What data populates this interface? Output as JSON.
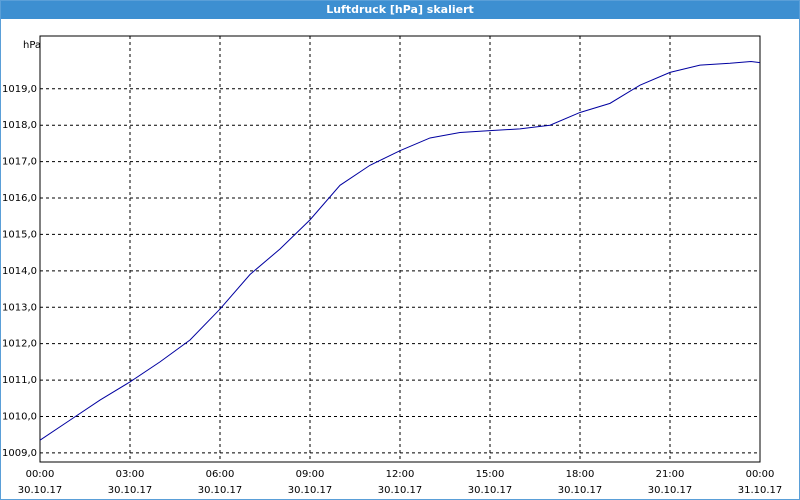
{
  "window_title": "Luftdruck [hPa] skaliert",
  "chart_data": {
    "type": "line",
    "y_label": "hPa",
    "x": [
      0,
      1,
      2,
      3,
      4,
      5,
      6,
      7,
      8,
      9,
      10,
      11,
      12,
      13,
      14,
      15,
      16,
      17,
      18,
      19,
      20,
      21,
      22,
      23,
      23.7,
      24
    ],
    "series": [
      {
        "name": "Luftdruck",
        "color": "#0000a0",
        "values": [
          1009.35,
          1009.9,
          1010.45,
          1010.95,
          1011.5,
          1012.1,
          1012.95,
          1013.9,
          1014.6,
          1015.4,
          1016.35,
          1016.9,
          1017.3,
          1017.65,
          1017.8,
          1017.85,
          1017.9,
          1018.0,
          1018.35,
          1018.6,
          1019.1,
          1019.45,
          1019.65,
          1019.7,
          1019.75,
          1019.72
        ]
      }
    ],
    "xlim": [
      0,
      24
    ],
    "ylim": [
      1008.75,
      1020.45
    ],
    "xticks": [
      {
        "value": 0,
        "label": "00:00",
        "date": "30.10.17"
      },
      {
        "value": 3,
        "label": "03:00",
        "date": "30.10.17"
      },
      {
        "value": 6,
        "label": "06:00",
        "date": "30.10.17"
      },
      {
        "value": 9,
        "label": "09:00",
        "date": "30.10.17"
      },
      {
        "value": 12,
        "label": "12:00",
        "date": "30.10.17"
      },
      {
        "value": 15,
        "label": "15:00",
        "date": "30.10.17"
      },
      {
        "value": 18,
        "label": "18:00",
        "date": "30.10.17"
      },
      {
        "value": 21,
        "label": "21:00",
        "date": "30.10.17"
      },
      {
        "value": 24,
        "label": "00:00",
        "date": "31.10.17"
      }
    ],
    "yticks": [
      {
        "value": 1009,
        "label": "1009,0"
      },
      {
        "value": 1010,
        "label": "1010,0"
      },
      {
        "value": 1011,
        "label": "1011,0"
      },
      {
        "value": 1012,
        "label": "1012,0"
      },
      {
        "value": 1013,
        "label": "1013,0"
      },
      {
        "value": 1014,
        "label": "1014,0"
      },
      {
        "value": 1015,
        "label": "1015,0"
      },
      {
        "value": 1016,
        "label": "1016,0"
      },
      {
        "value": 1017,
        "label": "1017,0"
      },
      {
        "value": 1018,
        "label": "1018,0"
      },
      {
        "value": 1019,
        "label": "1019,0"
      }
    ],
    "grid": true
  }
}
